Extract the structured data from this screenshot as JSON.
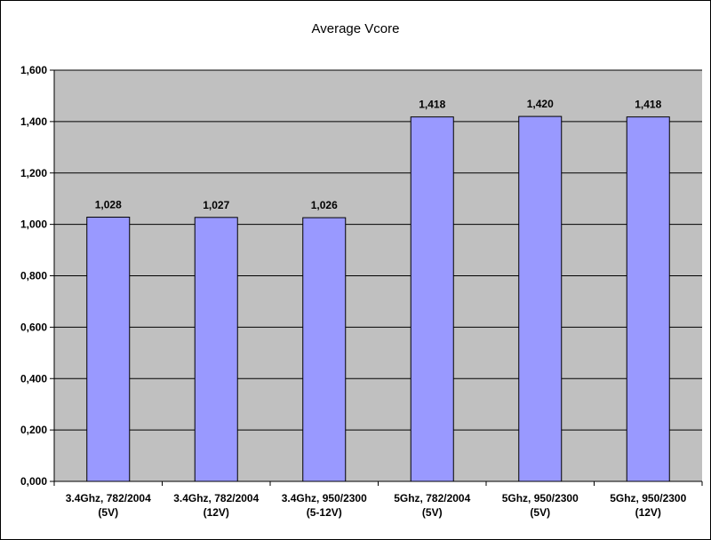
{
  "chart_data": {
    "type": "bar",
    "title": "Average Vcore",
    "categories": [
      [
        "3.4Ghz, 782/2004",
        "(5V)"
      ],
      [
        "3.4Ghz, 782/2004",
        "(12V)"
      ],
      [
        "3.4Ghz, 950/2300",
        "(5-12V)"
      ],
      [
        "5Ghz, 782/2004",
        "(5V)"
      ],
      [
        "5Ghz, 950/2300",
        "(5V)"
      ],
      [
        "5Ghz, 950/2300",
        "(12V)"
      ]
    ],
    "values": [
      1.028,
      1.027,
      1.026,
      1.418,
      1.42,
      1.418
    ],
    "data_labels": [
      "1,028",
      "1,027",
      "1,026",
      "1,418",
      "1,420",
      "1,418"
    ],
    "ylim": [
      0,
      1.6
    ],
    "yticks": [
      0,
      0.2,
      0.4,
      0.6,
      0.8,
      1.0,
      1.2,
      1.4,
      1.6
    ],
    "ytick_labels": [
      "0,000",
      "0,200",
      "0,400",
      "0,600",
      "0,800",
      "1,000",
      "1,200",
      "1,400",
      "1,600"
    ],
    "xlabel": "",
    "ylabel": "",
    "grid": true,
    "legend": "none",
    "colors": {
      "bar_fill": "#9999ff",
      "bar_stroke": "#000000",
      "plot_bg": "#c0c0c0",
      "grid": "#000000",
      "text": "#000000"
    }
  }
}
